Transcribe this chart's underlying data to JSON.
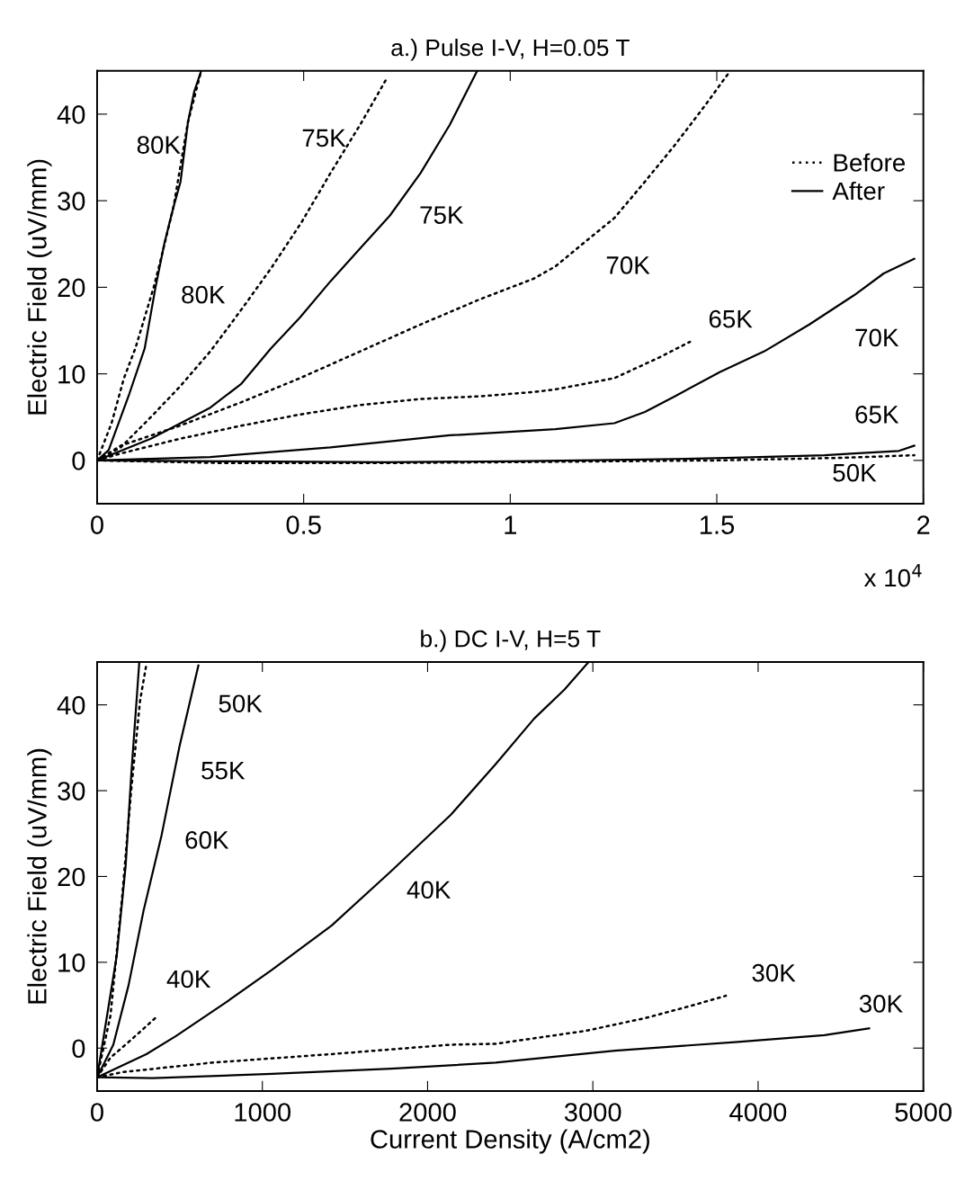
{
  "chart_data": [
    {
      "type": "line",
      "title": "a.) Pulse I-V, H=0.05 T",
      "ylabel": "Electric Field (uV/mm)",
      "xlim": [
        0,
        2
      ],
      "xticks": [
        0,
        0.5,
        1,
        1.5,
        2
      ],
      "ylim": [
        -5,
        45
      ],
      "yticks": [
        0,
        10,
        20,
        30,
        40
      ],
      "grid": false,
      "legend": "upper right",
      "series": [
        {
          "name": "Before",
          "color": "#000000",
          "line_style": "dotted",
          "x": [
            0,
            0.035,
            0.065,
            0.093,
            0.115,
            0.137,
            0.152,
            0.185,
            0.22,
            0.252
          ],
          "values": [
            0,
            4.3,
            9.5,
            13,
            16.5,
            20,
            22.8,
            29.3,
            39.1,
            45
          ]
        },
        {
          "name": "After",
          "color": "#000000",
          "line_style": "solid",
          "x": [
            0,
            0.028,
            0.078,
            0.115,
            0.141,
            0.163,
            0.185,
            0.202,
            0.22,
            0.235,
            0.252
          ],
          "values": [
            0,
            1.2,
            7.7,
            12.9,
            19.9,
            25.1,
            29.3,
            32.2,
            39.1,
            42.6,
            45
          ]
        },
        {
          "color": "#000000",
          "line_style": "dotted",
          "x": [
            0,
            0.057,
            0.13,
            0.2,
            0.274,
            0.352,
            0.424,
            0.496,
            0.565,
            0.637,
            0.702
          ],
          "values": [
            0,
            1.5,
            5.0,
            8.5,
            12.6,
            17.6,
            22.4,
            27.6,
            33.2,
            38.8,
            44.2
          ]
        },
        {
          "color": "#000000",
          "line_style": "solid",
          "x": [
            0,
            0.13,
            0.274,
            0.348,
            0.42,
            0.491,
            0.565,
            0.637,
            0.709,
            0.783,
            0.854,
            0.92
          ],
          "values": [
            0,
            2.5,
            6.1,
            8.8,
            12.9,
            16.5,
            20.7,
            24.5,
            28.3,
            33.2,
            38.8,
            45
          ]
        },
        {
          "color": "#000000",
          "line_style": "dotted",
          "x": [
            0,
            0.057,
            0.2,
            0.348,
            0.491,
            0.637,
            0.783,
            0.926,
            1.057,
            1.109,
            1.18,
            1.252,
            1.326,
            1.398,
            1.47,
            1.528
          ],
          "values": [
            0,
            1.7,
            4.0,
            6.7,
            9.5,
            12.6,
            15.7,
            18.6,
            21.0,
            22.4,
            25.2,
            28.0,
            32.2,
            36.4,
            40.9,
            44.7
          ]
        },
        {
          "color": "#000000",
          "line_style": "dotted",
          "x": [
            0,
            0.057,
            0.2,
            0.348,
            0.491,
            0.637,
            0.783,
            0.926,
            1.057,
            1.109,
            1.252,
            1.361,
            1.435
          ],
          "values": [
            0,
            0.8,
            2.5,
            4.0,
            5.3,
            6.4,
            7.1,
            7.4,
            7.9,
            8.2,
            9.5,
            11.9,
            13.7
          ]
        },
        {
          "color": "#000000",
          "line_style": "solid",
          "x": [
            0,
            0.274,
            0.565,
            0.854,
            1.109,
            1.252,
            1.326,
            1.398,
            1.507,
            1.615,
            1.724,
            1.833,
            1.904,
            1.978
          ],
          "values": [
            0,
            0.4,
            1.5,
            2.9,
            3.6,
            4.3,
            5.6,
            7.4,
            10.2,
            12.6,
            15.7,
            19.1,
            21.6,
            23.3
          ]
        },
        {
          "color": "#000000",
          "line_style": "solid",
          "x": [
            0,
            0.3,
            0.7,
            1.0,
            1.326,
            1.543,
            1.761,
            1.833,
            1.941,
            1.978
          ],
          "values": [
            0,
            -0.1,
            -0.2,
            -0.1,
            0.1,
            0.3,
            0.6,
            0.8,
            1.1,
            1.7
          ]
        },
        {
          "color": "#000000",
          "line_style": "dotted",
          "x": [
            0,
            0.3,
            0.7,
            1.0,
            1.5,
            1.8,
            1.978
          ],
          "values": [
            0,
            -0.3,
            -0.3,
            -0.2,
            0,
            0.3,
            0.6
          ]
        }
      ],
      "annotations": [
        {
          "text": "80K",
          "x": 0.214,
          "y": 36.2
        },
        {
          "text": "75K",
          "x": 0.614,
          "y": 37
        },
        {
          "text": "75K",
          "x": 0.705,
          "y": 28.1
        },
        {
          "text": "80K",
          "x": 0.128,
          "y": 18.9
        },
        {
          "text": "70K",
          "x": 1.104,
          "y": 22.3
        },
        {
          "text": "65K",
          "x": 1.435,
          "y": 13.7
        },
        {
          "text": "70K",
          "x": 1.887,
          "y": 21.0
        },
        {
          "text": "65K",
          "x": 1.887,
          "y": 1.0
        },
        {
          "text": "50K",
          "x": 1.833,
          "y": 0.3
        },
        "x 10$^{4}$"
      ]
    },
    {
      "type": "line",
      "title": "b.) DC I-V, H=5 T",
      "xlabel": "Current Density (A/cm2)",
      "ylabel": "Electric Field (uV/mm)",
      "xlim": [
        0,
        5000
      ],
      "xticks": [
        0,
        1000,
        2000,
        3000,
        4000,
        5000
      ],
      "ylim": [
        -5,
        45
      ],
      "yticks": [
        0,
        10,
        20,
        30,
        40
      ],
      "grid": false,
      "series": [
        {
          "color": "#000000",
          "line_style": "solid",
          "x": [
            0,
            119,
            173,
            206,
            255
          ],
          "values": [
            -3.4,
            10.8,
            21.3,
            31.7,
            44.9
          ]
        },
        {
          "color": "#000000",
          "line_style": "dotted",
          "x": [
            0,
            81,
            152,
            206,
            260,
            298
          ],
          "values": [
            -3.4,
            3.8,
            17.7,
            30,
            40.5,
            44.7
          ]
        },
        {
          "color": "#000000",
          "line_style": "dotted",
          "x": [
            0,
            81,
            190,
            260,
            352
          ],
          "values": [
            -3.4,
            -1.1,
            0.7,
            1.9,
            3.5
          ]
        },
        {
          "color": "#000000",
          "line_style": "solid",
          "x": [
            0,
            98,
            190,
            282,
            390,
            499,
            613
          ],
          "values": [
            -3.4,
            0.4,
            7.3,
            16.1,
            24.8,
            35.2,
            44.6
          ]
        },
        {
          "color": "#000000",
          "line_style": "solid",
          "x": [
            0,
            298,
            477,
            770,
            1057,
            1420,
            1778,
            2141,
            2412,
            2645,
            2829,
            2970
          ],
          "values": [
            -3.4,
            -0.7,
            1.4,
            5.2,
            9.1,
            14.3,
            20.6,
            27.2,
            33.1,
            38.4,
            41.8,
            44.9
          ]
        },
        {
          "color": "#000000",
          "line_style": "dotted",
          "x": [
            0,
            152,
            694,
            1420,
            2141,
            2412,
            2954,
            3317,
            3588,
            3805
          ],
          "values": [
            -3.4,
            -2.8,
            -1.7,
            -0.7,
            0.4,
            0.5,
            2.0,
            3.5,
            4.9,
            6.1
          ]
        },
        {
          "color": "#000000",
          "line_style": "solid",
          "x": [
            0,
            336,
            1057,
            1778,
            2412,
            3133,
            3859,
            4401,
            4672
          ],
          "values": [
            -3.4,
            -3.5,
            -3.0,
            -2.4,
            -1.7,
            -0.3,
            0.7,
            1.5,
            2.3
          ]
        }
      ],
      "annotations": [
        {
          "text": "50K",
          "x": 556,
          "y": 39.9
        },
        {
          "text": "55K",
          "x": 467,
          "y": 32.1
        },
        {
          "text": "60K",
          "x": 380,
          "y": 24.0
        },
        {
          "text": "40K",
          "x": 1642,
          "y": 18.2
        },
        {
          "text": "40K",
          "x": 352,
          "y": 3.5
        },
        {
          "text": "30K",
          "x": 3805,
          "y": 6.1
        },
        {
          "text": "30K",
          "x": 4672,
          "y": 2.3
        }
      ]
    }
  ]
}
